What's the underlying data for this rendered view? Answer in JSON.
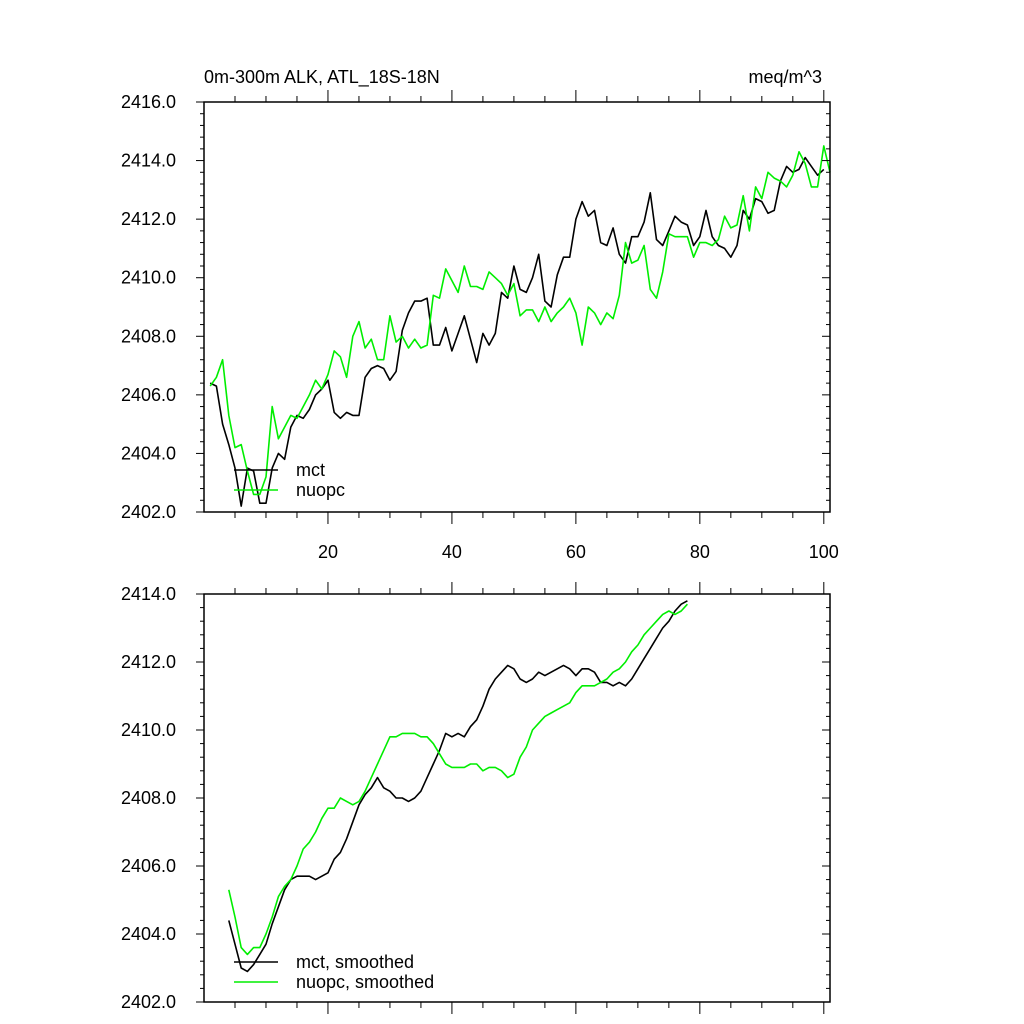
{
  "chart_data": [
    {
      "type": "line",
      "title_left": "0m-300m ALK, ATL_18S-18N",
      "title_right": "meq/m^3",
      "xlim": [
        0,
        101
      ],
      "ylim": [
        2402,
        2416
      ],
      "x_ticks": [
        20,
        40,
        60,
        80,
        100
      ],
      "x_tick_labels": [
        "20",
        "40",
        "60",
        "80",
        "100"
      ],
      "y_ticks": [
        2402,
        2404,
        2406,
        2408,
        2410,
        2412,
        2414,
        2416
      ],
      "y_tick_labels": [
        "2402.0",
        "2404.0",
        "2406.0",
        "2408.0",
        "2410.0",
        "2412.0",
        "2414.0",
        "2416.0"
      ],
      "legend_position": "bottom-left",
      "x_start": 1,
      "series": [
        {
          "name": "mct",
          "color": "#000000",
          "values": [
            2406.4,
            2406.3,
            2405.0,
            2404.3,
            2403.5,
            2402.2,
            2403.5,
            2403.4,
            2402.3,
            2402.3,
            2403.5,
            2404.0,
            2403.8,
            2404.9,
            2405.3,
            2405.2,
            2405.5,
            2406.0,
            2406.2,
            2406.5,
            2405.4,
            2405.2,
            2405.4,
            2405.3,
            2405.3,
            2406.6,
            2406.9,
            2407.0,
            2406.9,
            2406.5,
            2406.8,
            2408.2,
            2408.8,
            2409.2,
            2409.2,
            2409.3,
            2407.7,
            2407.7,
            2408.3,
            2407.5,
            2408.1,
            2408.7,
            2407.9,
            2407.1,
            2408.1,
            2407.7,
            2408.1,
            2409.5,
            2409.3,
            2410.4,
            2409.6,
            2409.5,
            2410.0,
            2410.8,
            2409.2,
            2409.0,
            2410.1,
            2410.7,
            2410.7,
            2412.0,
            2412.6,
            2412.1,
            2412.3,
            2411.2,
            2411.1,
            2411.7,
            2410.8,
            2410.5,
            2411.4,
            2411.4,
            2411.9,
            2412.9,
            2411.3,
            2411.1,
            2411.6,
            2412.1,
            2411.9,
            2411.8,
            2411.1,
            2411.4,
            2412.3,
            2411.4,
            2411.1,
            2411.0,
            2410.7,
            2411.1,
            2412.3,
            2412.0,
            2412.7,
            2412.6,
            2412.2,
            2412.3,
            2413.3,
            2413.8,
            2413.6,
            2413.7,
            2414.1,
            2413.8,
            2413.5,
            2413.7
          ]
        },
        {
          "name": "nuopc",
          "color": "#00ee00",
          "values": [
            2406.3,
            2406.6,
            2407.2,
            2405.3,
            2404.2,
            2404.3,
            2403.4,
            2402.6,
            2402.6,
            2403.2,
            2405.6,
            2404.5,
            2404.9,
            2405.3,
            2405.2,
            2405.6,
            2406.0,
            2406.5,
            2406.2,
            2406.7,
            2407.5,
            2407.3,
            2406.6,
            2408.0,
            2408.5,
            2407.6,
            2407.9,
            2407.2,
            2407.2,
            2408.7,
            2407.8,
            2408.0,
            2407.6,
            2407.9,
            2407.6,
            2407.7,
            2409.4,
            2409.3,
            2410.3,
            2409.9,
            2409.5,
            2410.4,
            2409.7,
            2409.7,
            2409.6,
            2410.2,
            2410.0,
            2409.8,
            2409.4,
            2409.8,
            2408.7,
            2408.9,
            2408.9,
            2408.5,
            2409.0,
            2408.5,
            2408.8,
            2409.0,
            2409.3,
            2408.8,
            2407.7,
            2409.0,
            2408.8,
            2408.4,
            2408.8,
            2408.6,
            2409.4,
            2411.2,
            2410.5,
            2410.6,
            2411.1,
            2409.6,
            2409.3,
            2410.2,
            2411.5,
            2411.4,
            2411.4,
            2411.4,
            2410.7,
            2411.2,
            2411.2,
            2411.1,
            2411.3,
            2412.1,
            2411.7,
            2411.8,
            2412.8,
            2411.6,
            2413.1,
            2412.7,
            2413.6,
            2413.4,
            2413.3,
            2413.1,
            2413.5,
            2414.3,
            2413.9,
            2413.1,
            2413.1,
            2414.5,
            2413.6
          ]
        }
      ]
    },
    {
      "type": "line",
      "xlim": [
        0,
        101
      ],
      "ylim": [
        2402,
        2414
      ],
      "x_ticks": [
        20,
        40,
        60,
        80,
        100
      ],
      "y_ticks": [
        2402,
        2404,
        2406,
        2408,
        2410,
        2412,
        2414
      ],
      "y_tick_labels": [
        "2402.0",
        "2404.0",
        "2406.0",
        "2408.0",
        "2410.0",
        "2412.0",
        "2414.0"
      ],
      "legend_position": "bottom-left",
      "x_start": 4,
      "series": [
        {
          "name": "mct, smoothed",
          "color": "#000000",
          "values": [
            2404.4,
            2403.7,
            2403.0,
            2402.9,
            2403.1,
            2403.4,
            2403.7,
            2404.3,
            2404.8,
            2405.3,
            2405.6,
            2405.7,
            2405.7,
            2405.7,
            2405.6,
            2405.7,
            2405.8,
            2406.2,
            2406.4,
            2406.8,
            2407.3,
            2407.8,
            2408.1,
            2408.3,
            2408.6,
            2408.3,
            2408.2,
            2408.0,
            2408.0,
            2407.9,
            2408.0,
            2408.2,
            2408.6,
            2409.0,
            2409.4,
            2409.9,
            2409.8,
            2409.9,
            2409.8,
            2410.1,
            2410.3,
            2410.7,
            2411.2,
            2411.5,
            2411.7,
            2411.9,
            2411.8,
            2411.5,
            2411.4,
            2411.5,
            2411.7,
            2411.6,
            2411.7,
            2411.8,
            2411.9,
            2411.8,
            2411.6,
            2411.8,
            2411.8,
            2411.7,
            2411.4,
            2411.4,
            2411.3,
            2411.4,
            2411.3,
            2411.5,
            2411.8,
            2412.1,
            2412.4,
            2412.7,
            2413.0,
            2413.2,
            2413.5,
            2413.7,
            2413.8
          ]
        },
        {
          "name": "nuopc, smoothed",
          "color": "#00ee00",
          "values": [
            2405.3,
            2404.5,
            2403.6,
            2403.4,
            2403.6,
            2403.6,
            2404.0,
            2404.5,
            2405.1,
            2405.4,
            2405.6,
            2406.0,
            2406.5,
            2406.7,
            2407.0,
            2407.4,
            2407.7,
            2407.7,
            2408.0,
            2407.9,
            2407.8,
            2407.9,
            2408.2,
            2408.6,
            2409.0,
            2409.4,
            2409.8,
            2409.8,
            2409.9,
            2409.9,
            2409.9,
            2409.8,
            2409.8,
            2409.6,
            2409.3,
            2409.0,
            2408.9,
            2408.9,
            2408.9,
            2409.0,
            2409.0,
            2408.8,
            2408.9,
            2408.9,
            2408.8,
            2408.6,
            2408.7,
            2409.2,
            2409.5,
            2410.0,
            2410.2,
            2410.4,
            2410.5,
            2410.6,
            2410.7,
            2410.8,
            2411.1,
            2411.3,
            2411.3,
            2411.3,
            2411.4,
            2411.5,
            2411.7,
            2411.8,
            2412.0,
            2412.3,
            2412.5,
            2412.8,
            2413.0,
            2413.2,
            2413.4,
            2413.5,
            2413.4,
            2413.5,
            2413.7
          ]
        }
      ]
    }
  ]
}
